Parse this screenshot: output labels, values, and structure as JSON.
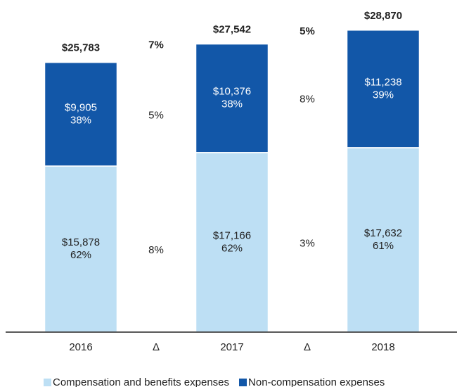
{
  "chart_data": {
    "type": "stacked_bar",
    "categories": [
      "2016",
      "2017",
      "2018"
    ],
    "ylim": [
      0,
      30000
    ],
    "series": [
      {
        "name": "Compensation and benefits expenses",
        "color": "#bddff4",
        "values": [
          15878,
          17166,
          17632
        ],
        "value_labels": [
          "$15,878",
          "$17,166",
          "$17,632"
        ],
        "shares": [
          "62%",
          "62%",
          "61%"
        ]
      },
      {
        "name": "Non-compensation expenses",
        "color": "#1257a8",
        "values": [
          9905,
          10376,
          11238
        ],
        "value_labels": [
          "$9,905",
          "$10,376",
          "$11,238"
        ],
        "shares": [
          "38%",
          "38%",
          "39%"
        ]
      }
    ],
    "totals": [
      25783,
      27542,
      28870
    ],
    "total_labels": [
      "$25,783",
      "$27,542",
      "$28,870"
    ],
    "deltas": [
      {
        "label": "Δ",
        "total": "7%",
        "series": [
          "8%",
          "5%"
        ]
      },
      {
        "label": "Δ",
        "total": "5%",
        "series": [
          "3%",
          "8%"
        ]
      }
    ]
  }
}
